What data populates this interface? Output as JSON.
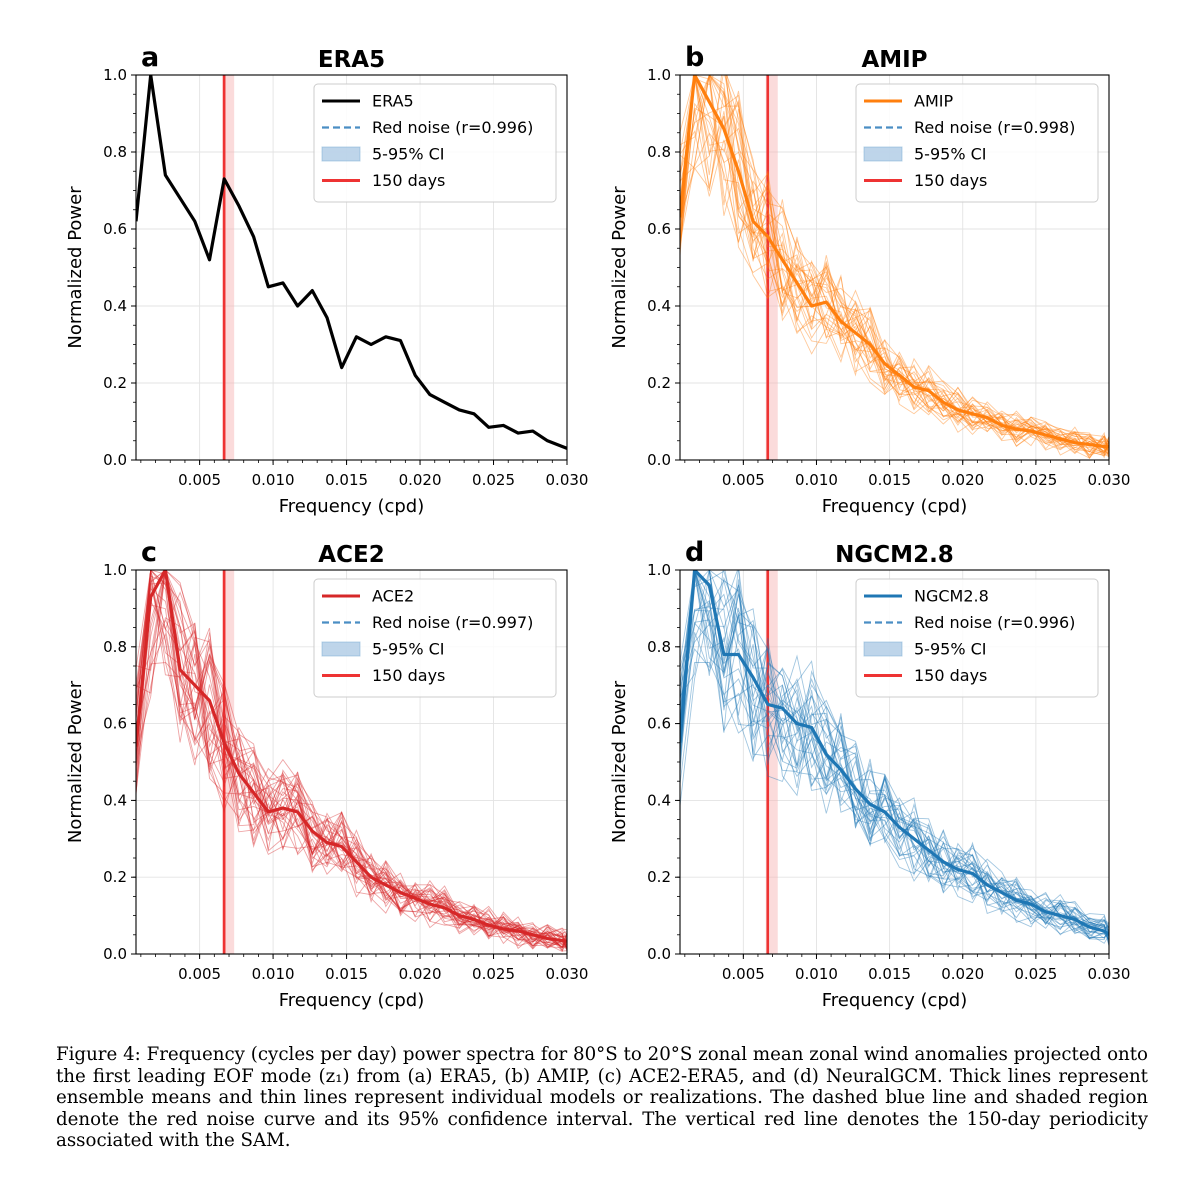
{
  "figure": {
    "caption": "Figure 4: Frequency (cycles per day) power spectra for 80°S to 20°S zonal mean zonal wind anomalies projected onto the first leading EOF mode (z₁) from (a) ERA5, (b) AMIP, (c) ACE2-ERA5, and (d) NeuralGCM. Thick lines represent ensemble means and thin lines represent individual models or realizations. The dashed blue line and shaded region denote the red noise curve and its 95% confidence interval. The vertical red line denotes the 150-day periodicity associated with the SAM."
  },
  "colors": {
    "era5": "#000000",
    "amip": "#ff7f0e",
    "ace2": "#d62728",
    "ngcm": "#1f77b4",
    "red_noise": "#4a8ec4",
    "ci_fill": "#a9c8e3",
    "vline": "#ee3333"
  },
  "chart_data": [
    {
      "panel": "a",
      "type": "line",
      "title": "ERA5",
      "xlabel": "Frequency (cpd)",
      "ylabel": "Normalized Power",
      "xlim": [
        0.00067,
        0.03
      ],
      "ylim": [
        0,
        1.0
      ],
      "xticks": [
        "0.005",
        "0.010",
        "0.015",
        "0.020",
        "0.025",
        "0.030"
      ],
      "yticks": [
        "0.0",
        "0.2",
        "0.4",
        "0.6",
        "0.8",
        "1.0"
      ],
      "grid": true,
      "legend": [
        "ERA5",
        "Red noise (r=0.996)",
        "5-95% CI",
        "150 days"
      ],
      "legend_position": "top-right",
      "vline": 0.00667,
      "red_noise_r": 0.996,
      "ensemble_members": 0,
      "series": [
        {
          "name": "ERA5",
          "x": [
            0.00067,
            0.00167,
            0.00267,
            0.00367,
            0.00467,
            0.00567,
            0.00667,
            0.00767,
            0.00867,
            0.00967,
            0.01067,
            0.01167,
            0.01267,
            0.01367,
            0.01467,
            0.01567,
            0.01667,
            0.01767,
            0.01867,
            0.01967,
            0.02067,
            0.02167,
            0.02267,
            0.02367,
            0.02467,
            0.02567,
            0.02667,
            0.02767,
            0.02867,
            0.02967,
            0.03
          ],
          "values": [
            0.62,
            1.0,
            0.74,
            0.68,
            0.62,
            0.52,
            0.73,
            0.66,
            0.58,
            0.45,
            0.46,
            0.4,
            0.44,
            0.37,
            0.24,
            0.32,
            0.3,
            0.32,
            0.31,
            0.22,
            0.17,
            0.15,
            0.13,
            0.12,
            0.085,
            0.09,
            0.07,
            0.075,
            0.05,
            0.035,
            0.03
          ]
        }
      ]
    },
    {
      "panel": "b",
      "type": "line",
      "title": "AMIP",
      "xlabel": "Frequency (cpd)",
      "ylabel": "Normalized Power",
      "xlim": [
        0.00067,
        0.03
      ],
      "ylim": [
        0,
        1.0
      ],
      "xticks": [
        "0.005",
        "0.010",
        "0.015",
        "0.020",
        "0.025",
        "0.030"
      ],
      "yticks": [
        "0.0",
        "0.2",
        "0.4",
        "0.6",
        "0.8",
        "1.0"
      ],
      "grid": true,
      "legend": [
        "AMIP",
        "Red noise (r=0.998)",
        "5-95% CI",
        "150 days"
      ],
      "legend_position": "top-right",
      "vline": 0.00667,
      "red_noise_r": 0.998,
      "ensemble_members": 30,
      "series": [
        {
          "name": "AMIP",
          "x": [
            0.00067,
            0.00167,
            0.00267,
            0.00367,
            0.00467,
            0.00567,
            0.00667,
            0.00767,
            0.00867,
            0.00967,
            0.01067,
            0.01167,
            0.01267,
            0.01367,
            0.01467,
            0.01567,
            0.01667,
            0.01767,
            0.01867,
            0.01967,
            0.02067,
            0.02167,
            0.02267,
            0.02367,
            0.02467,
            0.02567,
            0.02667,
            0.02767,
            0.02867,
            0.02967,
            0.03
          ],
          "values": [
            0.63,
            1.0,
            0.93,
            0.86,
            0.75,
            0.62,
            0.58,
            0.52,
            0.46,
            0.4,
            0.41,
            0.36,
            0.33,
            0.3,
            0.25,
            0.22,
            0.19,
            0.18,
            0.15,
            0.13,
            0.12,
            0.11,
            0.09,
            0.08,
            0.075,
            0.065,
            0.055,
            0.045,
            0.04,
            0.035,
            0.035
          ]
        }
      ]
    },
    {
      "panel": "c",
      "type": "line",
      "title": "ACE2",
      "xlabel": "Frequency (cpd)",
      "ylabel": "Normalized Power",
      "xlim": [
        0.00067,
        0.03
      ],
      "ylim": [
        0,
        1.0
      ],
      "xticks": [
        "0.005",
        "0.010",
        "0.015",
        "0.020",
        "0.025",
        "0.030"
      ],
      "yticks": [
        "0.0",
        "0.2",
        "0.4",
        "0.6",
        "0.8",
        "1.0"
      ],
      "grid": true,
      "legend": [
        "ACE2",
        "Red noise (r=0.997)",
        "5-95% CI",
        "150 days"
      ],
      "legend_position": "top-right",
      "vline": 0.00667,
      "red_noise_r": 0.997,
      "ensemble_members": 35,
      "series": [
        {
          "name": "ACE2",
          "x": [
            0.00067,
            0.00167,
            0.00267,
            0.00367,
            0.00467,
            0.00567,
            0.00667,
            0.00767,
            0.00867,
            0.00967,
            0.01067,
            0.01167,
            0.01267,
            0.01367,
            0.01467,
            0.01567,
            0.01667,
            0.01767,
            0.01867,
            0.01967,
            0.02067,
            0.02167,
            0.02267,
            0.02367,
            0.02467,
            0.02567,
            0.02667,
            0.02767,
            0.02867,
            0.02967,
            0.03
          ],
          "values": [
            0.54,
            0.93,
            1.0,
            0.74,
            0.7,
            0.66,
            0.55,
            0.47,
            0.42,
            0.37,
            0.38,
            0.37,
            0.32,
            0.29,
            0.28,
            0.24,
            0.2,
            0.18,
            0.16,
            0.145,
            0.13,
            0.12,
            0.1,
            0.09,
            0.075,
            0.065,
            0.06,
            0.05,
            0.04,
            0.035,
            0.033
          ]
        }
      ]
    },
    {
      "panel": "d",
      "type": "line",
      "title": "NGCM2.8",
      "xlabel": "Frequency (cpd)",
      "ylabel": "Normalized Power",
      "xlim": [
        0.00067,
        0.03
      ],
      "ylim": [
        0,
        1.0
      ],
      "xticks": [
        "0.005",
        "0.010",
        "0.015",
        "0.020",
        "0.025",
        "0.030"
      ],
      "yticks": [
        "0.0",
        "0.2",
        "0.4",
        "0.6",
        "0.8",
        "1.0"
      ],
      "grid": true,
      "legend": [
        "NGCM2.8",
        "Red noise (r=0.996)",
        "5-95% CI",
        "150 days"
      ],
      "legend_position": "top-right",
      "vline": 0.00667,
      "red_noise_r": 0.996,
      "ensemble_members": 30,
      "series": [
        {
          "name": "NGCM2.8",
          "x": [
            0.00067,
            0.00167,
            0.00267,
            0.00367,
            0.00467,
            0.00567,
            0.00667,
            0.00767,
            0.00867,
            0.00967,
            0.01067,
            0.01167,
            0.01267,
            0.01367,
            0.01467,
            0.01567,
            0.01667,
            0.01767,
            0.01867,
            0.01967,
            0.02067,
            0.02167,
            0.02267,
            0.02367,
            0.02467,
            0.02567,
            0.02667,
            0.02767,
            0.02867,
            0.02967,
            0.03
          ],
          "values": [
            0.55,
            1.0,
            0.96,
            0.78,
            0.78,
            0.72,
            0.65,
            0.64,
            0.6,
            0.59,
            0.52,
            0.48,
            0.43,
            0.39,
            0.37,
            0.33,
            0.3,
            0.27,
            0.24,
            0.22,
            0.21,
            0.18,
            0.16,
            0.14,
            0.13,
            0.11,
            0.1,
            0.09,
            0.07,
            0.06,
            0.05
          ]
        }
      ]
    }
  ]
}
